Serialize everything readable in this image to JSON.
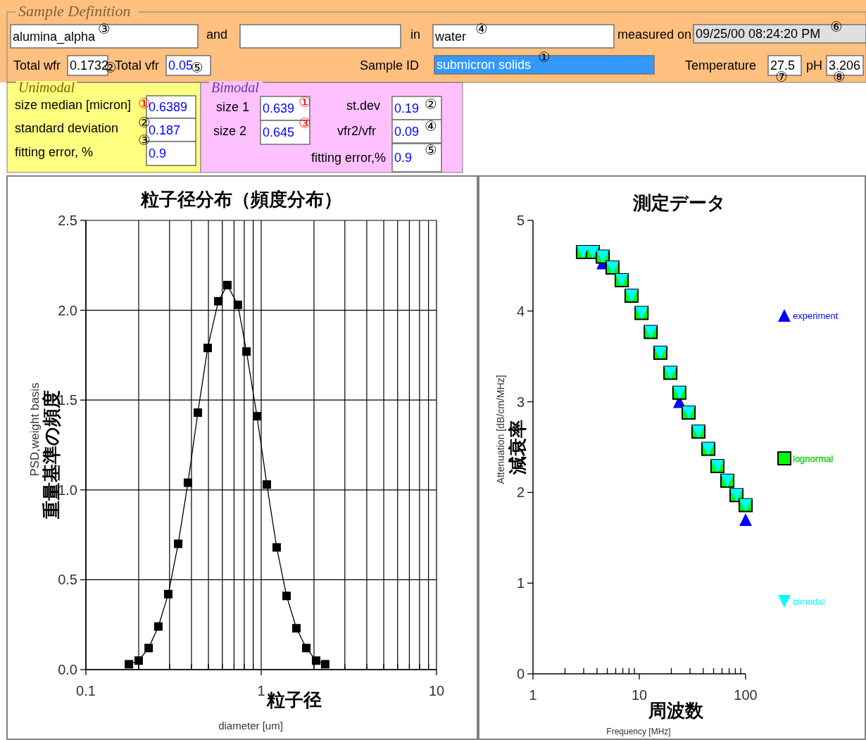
{
  "chart_data": [
    {
      "type": "other",
      "title": "Sample Definition",
      "annotations": [
        "and",
        "in",
        "measured on",
        "Total wfr",
        "Total vfr",
        "Sample ID",
        "Temperature",
        "pH",
        "Unimodal",
        "Bimodal",
        "size median [micron]",
        "standard deviation",
        "fitting error, %",
        "size 1",
        "size 2",
        "st.dev",
        "vfr2/vfr",
        "fitting error,%",
        "alumina_alpha",
        "water",
        "09/25/00 08:24:20 PM",
        "0.1732",
        "0.05",
        "submicron solids",
        "27.5",
        "3.206",
        "0.6389",
        "0.187",
        "0.9",
        "0.639",
        "0.645",
        "0.19",
        "0.09",
        "0.9",
        "③",
        "②",
        "⑤",
        "④",
        "⑥",
        "①",
        "⑦",
        "⑧",
        "①",
        "②",
        "③",
        "①",
        "③",
        "②",
        "④",
        "⑤"
      ]
    },
    {
      "type": "line",
      "title": "粒子径分布（頻度分布）",
      "xlabel": "diameter [um]",
      "ylabel": "PSD,weight basis",
      "annotations": [
        "粒子径",
        "重量基準の頻度"
      ],
      "log": "x",
      "grid": true,
      "marker": "square",
      "xlim": [
        0.1,
        10
      ],
      "ylim": [
        0,
        2.5
      ],
      "xticks": [
        0.1,
        {
          "value": 0.2,
          "label": null
        },
        {
          "value": 0.3,
          "label": null
        },
        {
          "value": 0.4,
          "label": null
        },
        {
          "value": 0.5,
          "label": null
        },
        {
          "value": 0.6,
          "label": null
        },
        {
          "value": 0.7,
          "label": null
        },
        {
          "value": 0.8,
          "label": null
        },
        {
          "value": 0.9,
          "label": null
        },
        1,
        {
          "value": 2,
          "label": null
        },
        {
          "value": 3,
          "label": null
        },
        {
          "value": 4,
          "label": null
        },
        {
          "value": 5,
          "label": null
        },
        {
          "value": 6,
          "label": null
        },
        {
          "value": 7,
          "label": null
        },
        {
          "value": 8,
          "label": null
        },
        {
          "value": 9,
          "label": null
        },
        10
      ],
      "yticks": [
        {
          "value": 0,
          "label": "0.0"
        },
        0.5,
        {
          "value": 1,
          "label": "1.0"
        },
        1.5,
        {
          "value": 2,
          "label": "2.0"
        },
        2.5
      ],
      "x": [
        0.176,
        0.2,
        0.228,
        0.259,
        0.295,
        0.336,
        0.382,
        0.435,
        0.495,
        0.569,
        0.641,
        0.736,
        0.824,
        0.946,
        1.077,
        1.225,
        1.395,
        1.588,
        1.807,
        2.056,
        2.317
      ],
      "series": [
        {
          "color": "#000000",
          "values": [
            0.03,
            0.05,
            0.12,
            0.24,
            0.42,
            0.7,
            1.04,
            1.43,
            1.79,
            2.05,
            2.14,
            2.03,
            1.77,
            1.41,
            1.03,
            0.68,
            0.41,
            0.23,
            0.12,
            0.05,
            0.03
          ]
        }
      ]
    },
    {
      "type": "scatter",
      "title": "測定データ",
      "xlabel": "Frequency [MHz]",
      "ylabel": "Attenuation [dB/cm/MHz]",
      "annotations": [
        "周波数",
        "減衰率"
      ],
      "log": "x",
      "legend": "right",
      "xlim": [
        1,
        100
      ],
      "ylim": [
        0,
        5
      ],
      "xticks": [
        1,
        {
          "value": 2,
          "label": null
        },
        {
          "value": 3,
          "label": null
        },
        {
          "value": 4,
          "label": null
        },
        {
          "value": 5,
          "label": null
        },
        {
          "value": 6,
          "label": null
        },
        {
          "value": 7,
          "label": null
        },
        {
          "value": 8,
          "label": null
        },
        {
          "value": 9,
          "label": null
        },
        10,
        {
          "value": 20,
          "label": null
        },
        {
          "value": 30,
          "label": null
        },
        {
          "value": 40,
          "label": null
        },
        {
          "value": 50,
          "label": null
        },
        {
          "value": 60,
          "label": null
        },
        {
          "value": 70,
          "label": null
        },
        {
          "value": 80,
          "label": null
        },
        {
          "value": 90,
          "label": null
        },
        100
      ],
      "yticks": [
        0,
        1,
        2,
        3,
        4,
        5
      ],
      "x": [
        2.95,
        3.66,
        4.53,
        5.6,
        6.83,
        8.45,
        10.5,
        12.8,
        15.8,
        19.6,
        23.8,
        29.1,
        36,
        44.6,
        54.3,
        67.3,
        82,
        100
      ],
      "series": [
        {
          "name": "experiment",
          "color": "#0000ff",
          "marker": "triangle",
          "values": [
            null,
            null,
            4.53,
            null,
            null,
            null,
            null,
            null,
            null,
            null,
            3.0,
            null,
            null,
            null,
            null,
            null,
            null,
            1.7
          ]
        },
        {
          "name": "lognormal",
          "color": "#00ff00",
          "marker": "square",
          "values": [
            4.65,
            4.65,
            4.6,
            4.48,
            4.34,
            4.17,
            3.98,
            3.77,
            3.54,
            3.32,
            3.1,
            2.88,
            2.67,
            2.48,
            2.29,
            2.13,
            1.97,
            1.86
          ]
        },
        {
          "name": "bimodal",
          "color": "#00ffff",
          "marker": "triangle-down",
          "values": [
            4.65,
            4.65,
            4.6,
            4.48,
            4.34,
            4.17,
            3.98,
            3.77,
            3.54,
            3.32,
            3.1,
            2.88,
            2.67,
            2.48,
            2.29,
            2.13,
            1.97,
            1.86
          ]
        }
      ]
    }
  ]
}
